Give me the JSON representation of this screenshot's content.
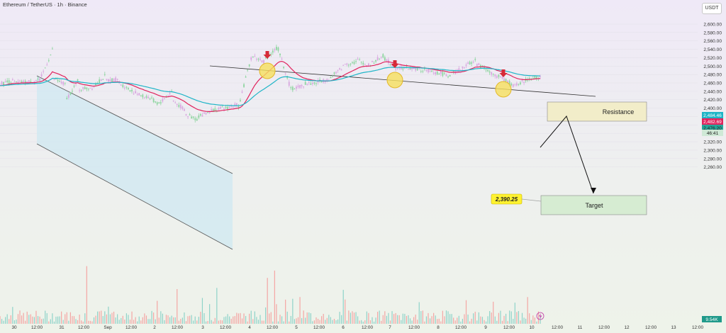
{
  "header": {
    "title": "Ethereum / TetherUS · 1h · Binance",
    "currency": "USDT"
  },
  "colors": {
    "bull": "#26a69a",
    "bear": "#ef5350",
    "ema_fast": "#e0245e",
    "ema_slow": "#1fb5c7"
  },
  "chart_data": {
    "type": "candlestick",
    "ylim": [
      2250,
      2620
    ],
    "y_ticks": [
      "2,260.00",
      "2,280.00",
      "2,300.00",
      "2,320.00",
      "2,340.00",
      "2,360.00",
      "2,380.00",
      "2,400.00",
      "2,420.00",
      "2,440.00",
      "2,460.00",
      "2,480.00",
      "2,500.00",
      "2,520.00",
      "2,540.00",
      "2,560.00",
      "2,580.00",
      "2,600.00"
    ],
    "x_ticks": [
      "30",
      "12:00",
      "31",
      "12:00",
      "Sep",
      "12:00",
      "2",
      "12:00",
      "3",
      "12:00",
      "4",
      "12:00",
      "5",
      "12:00",
      "6",
      "12:00",
      "7",
      "12:00",
      "8",
      "12:00",
      "9",
      "12:00",
      "10",
      "12:00",
      "11",
      "12:00",
      "12",
      "12:00",
      "13",
      "12:00"
    ],
    "price_labels": [
      {
        "text": "2,484.46",
        "color": "#1fb5c7"
      },
      {
        "text": "2,482.69",
        "color": "#e0245e"
      },
      {
        "text": "2,476.20",
        "color": "#26a69a"
      },
      {
        "text": "46:41",
        "color": "#26a69a"
      }
    ],
    "volume_label": "9.54K",
    "price_path": [
      [
        2458,
        2465
      ],
      [
        2460,
        2462
      ],
      [
        2462,
        2468
      ],
      [
        2465,
        2540
      ],
      [
        2470,
        2455
      ],
      [
        2420,
        2470
      ],
      [
        2445,
        2450
      ],
      [
        2450,
        2478
      ],
      [
        2465,
        2470
      ],
      [
        2460,
        2440
      ],
      [
        2440,
        2425
      ],
      [
        2430,
        2410
      ],
      [
        2410,
        2440
      ],
      [
        2420,
        2395
      ],
      [
        2385,
        2372
      ],
      [
        2380,
        2395
      ],
      [
        2395,
        2400
      ],
      [
        2398,
        2410
      ],
      [
        2400,
        2520
      ],
      [
        2525,
        2510
      ],
      [
        2515,
        2545
      ],
      [
        2545,
        2445
      ],
      [
        2445,
        2455
      ],
      [
        2458,
        2460
      ],
      [
        2462,
        2470
      ],
      [
        2472,
        2500
      ],
      [
        2505,
        2510
      ],
      [
        2515,
        2500
      ],
      [
        2505,
        2525
      ],
      [
        2520,
        2495
      ],
      [
        2498,
        2495
      ],
      [
        2495,
        2490
      ],
      [
        2490,
        2484
      ],
      [
        2485,
        2478
      ],
      [
        2478,
        2495
      ],
      [
        2498,
        2515
      ],
      [
        2505,
        2490
      ],
      [
        2485,
        2470
      ],
      [
        2470,
        2452
      ],
      [
        2455,
        2470
      ],
      [
        2470,
        2476
      ]
    ],
    "annotations": {
      "resistance_label": "Resistance",
      "target_label": "Target",
      "target_price": "2,390.25"
    }
  }
}
